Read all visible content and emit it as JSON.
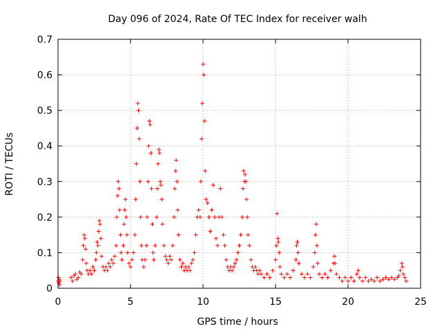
{
  "chart_data": {
    "type": "scatter",
    "title": "Day 096 of 2024, Rate Of TEC Index for receiver walh",
    "xlabel": "GPS time / hours",
    "ylabel": "ROTI / TECUs",
    "xlim": [
      0,
      25
    ],
    "ylim": [
      0,
      0.7
    ],
    "xticks": [
      "0",
      "5",
      "10",
      "15",
      "20",
      "25"
    ],
    "yticks": [
      "0",
      "0.1",
      "0.2",
      "0.3",
      "0.4",
      "0.5",
      "0.6",
      "0.7"
    ],
    "grid": true,
    "legend": "none",
    "marker": "plus",
    "color": "#ff0000",
    "points": [
      [
        0.0,
        0.02
      ],
      [
        0.02,
        0.03
      ],
      [
        0.05,
        0.015
      ],
      [
        0.08,
        0.025
      ],
      [
        0.1,
        0.01
      ],
      [
        0.12,
        0.02
      ],
      [
        0.9,
        0.03
      ],
      [
        1.0,
        0.02
      ],
      [
        1.1,
        0.035
      ],
      [
        1.2,
        0.04
      ],
      [
        1.3,
        0.025
      ],
      [
        1.4,
        0.03
      ],
      [
        1.5,
        0.045
      ],
      [
        1.6,
        0.04
      ],
      [
        1.7,
        0.08
      ],
      [
        1.75,
        0.12
      ],
      [
        1.8,
        0.15
      ],
      [
        1.85,
        0.14
      ],
      [
        1.9,
        0.11
      ],
      [
        1.95,
        0.07
      ],
      [
        2.0,
        0.05
      ],
      [
        2.1,
        0.04
      ],
      [
        2.2,
        0.05
      ],
      [
        2.3,
        0.04
      ],
      [
        2.4,
        0.06
      ],
      [
        2.5,
        0.05
      ],
      [
        2.6,
        0.08
      ],
      [
        2.65,
        0.1
      ],
      [
        2.7,
        0.13
      ],
      [
        2.75,
        0.12
      ],
      [
        2.8,
        0.16
      ],
      [
        2.85,
        0.19
      ],
      [
        2.9,
        0.18
      ],
      [
        2.95,
        0.14
      ],
      [
        3.0,
        0.09
      ],
      [
        3.1,
        0.06
      ],
      [
        3.2,
        0.05
      ],
      [
        3.3,
        0.06
      ],
      [
        3.4,
        0.05
      ],
      [
        3.5,
        0.07
      ],
      [
        3.6,
        0.06
      ],
      [
        3.7,
        0.08
      ],
      [
        3.8,
        0.07
      ],
      [
        3.9,
        0.09
      ],
      [
        4.0,
        0.12
      ],
      [
        4.05,
        0.2
      ],
      [
        4.1,
        0.26
      ],
      [
        4.15,
        0.3
      ],
      [
        4.2,
        0.28
      ],
      [
        4.25,
        0.22
      ],
      [
        4.3,
        0.15
      ],
      [
        4.35,
        0.1
      ],
      [
        4.4,
        0.08
      ],
      [
        4.5,
        0.12
      ],
      [
        4.55,
        0.18
      ],
      [
        4.6,
        0.22
      ],
      [
        4.65,
        0.25
      ],
      [
        4.7,
        0.2
      ],
      [
        4.75,
        0.15
      ],
      [
        4.8,
        0.1
      ],
      [
        4.9,
        0.07
      ],
      [
        5.0,
        0.06
      ],
      [
        5.1,
        0.08
      ],
      [
        5.2,
        0.1
      ],
      [
        5.3,
        0.15
      ],
      [
        5.35,
        0.25
      ],
      [
        5.4,
        0.35
      ],
      [
        5.45,
        0.45
      ],
      [
        5.5,
        0.52
      ],
      [
        5.55,
        0.5
      ],
      [
        5.6,
        0.42
      ],
      [
        5.65,
        0.3
      ],
      [
        5.7,
        0.2
      ],
      [
        5.75,
        0.12
      ],
      [
        5.8,
        0.08
      ],
      [
        5.9,
        0.06
      ],
      [
        6.0,
        0.08
      ],
      [
        6.1,
        0.12
      ],
      [
        6.15,
        0.2
      ],
      [
        6.2,
        0.3
      ],
      [
        6.25,
        0.4
      ],
      [
        6.3,
        0.47
      ],
      [
        6.35,
        0.46
      ],
      [
        6.4,
        0.38
      ],
      [
        6.45,
        0.28
      ],
      [
        6.5,
        0.18
      ],
      [
        6.55,
        0.1
      ],
      [
        6.6,
        0.08
      ],
      [
        6.7,
        0.12
      ],
      [
        6.8,
        0.2
      ],
      [
        6.85,
        0.28
      ],
      [
        6.9,
        0.35
      ],
      [
        6.95,
        0.39
      ],
      [
        7.0,
        0.38
      ],
      [
        7.05,
        0.3
      ],
      [
        7.1,
        0.29
      ],
      [
        7.15,
        0.25
      ],
      [
        7.2,
        0.18
      ],
      [
        7.3,
        0.12
      ],
      [
        7.4,
        0.09
      ],
      [
        7.5,
        0.08
      ],
      [
        7.6,
        0.07
      ],
      [
        7.7,
        0.09
      ],
      [
        7.8,
        0.08
      ],
      [
        7.9,
        0.12
      ],
      [
        8.0,
        0.2
      ],
      [
        8.05,
        0.28
      ],
      [
        8.1,
        0.33
      ],
      [
        8.15,
        0.36
      ],
      [
        8.2,
        0.3
      ],
      [
        8.25,
        0.22
      ],
      [
        8.3,
        0.15
      ],
      [
        8.4,
        0.08
      ],
      [
        8.5,
        0.06
      ],
      [
        8.6,
        0.07
      ],
      [
        8.7,
        0.05
      ],
      [
        8.8,
        0.06
      ],
      [
        8.9,
        0.05
      ],
      [
        9.0,
        0.06
      ],
      [
        9.1,
        0.05
      ],
      [
        9.2,
        0.07
      ],
      [
        9.3,
        0.08
      ],
      [
        9.4,
        0.1
      ],
      [
        9.5,
        0.15
      ],
      [
        9.6,
        0.2
      ],
      [
        9.7,
        0.22
      ],
      [
        9.8,
        0.2
      ],
      [
        9.85,
        0.3
      ],
      [
        9.9,
        0.42
      ],
      [
        9.95,
        0.52
      ],
      [
        10.0,
        0.63
      ],
      [
        10.05,
        0.6
      ],
      [
        10.1,
        0.47
      ],
      [
        10.15,
        0.33
      ],
      [
        10.2,
        0.25
      ],
      [
        10.3,
        0.24
      ],
      [
        10.4,
        0.2
      ],
      [
        10.5,
        0.16
      ],
      [
        10.6,
        0.22
      ],
      [
        10.7,
        0.29
      ],
      [
        10.8,
        0.2
      ],
      [
        10.9,
        0.14
      ],
      [
        11.0,
        0.12
      ],
      [
        11.1,
        0.2
      ],
      [
        11.2,
        0.28
      ],
      [
        11.3,
        0.2
      ],
      [
        11.4,
        0.15
      ],
      [
        11.5,
        0.12
      ],
      [
        11.6,
        0.08
      ],
      [
        11.7,
        0.06
      ],
      [
        11.8,
        0.05
      ],
      [
        11.9,
        0.06
      ],
      [
        12.0,
        0.05
      ],
      [
        12.1,
        0.06
      ],
      [
        12.2,
        0.07
      ],
      [
        12.3,
        0.08
      ],
      [
        12.4,
        0.1
      ],
      [
        12.5,
        0.12
      ],
      [
        12.6,
        0.15
      ],
      [
        12.7,
        0.2
      ],
      [
        12.75,
        0.28
      ],
      [
        12.8,
        0.33
      ],
      [
        12.85,
        0.3
      ],
      [
        12.9,
        0.32
      ],
      [
        12.95,
        0.3
      ],
      [
        13.0,
        0.25
      ],
      [
        13.05,
        0.2
      ],
      [
        13.1,
        0.15
      ],
      [
        13.2,
        0.12
      ],
      [
        13.3,
        0.08
      ],
      [
        13.4,
        0.06
      ],
      [
        13.5,
        0.05
      ],
      [
        13.6,
        0.06
      ],
      [
        13.7,
        0.05
      ],
      [
        13.8,
        0.04
      ],
      [
        13.9,
        0.05
      ],
      [
        14.0,
        0.04
      ],
      [
        14.2,
        0.03
      ],
      [
        14.4,
        0.04
      ],
      [
        14.6,
        0.03
      ],
      [
        14.8,
        0.05
      ],
      [
        15.0,
        0.08
      ],
      [
        15.05,
        0.12
      ],
      [
        15.1,
        0.21
      ],
      [
        15.15,
        0.14
      ],
      [
        15.2,
        0.13
      ],
      [
        15.25,
        0.1
      ],
      [
        15.3,
        0.06
      ],
      [
        15.4,
        0.04
      ],
      [
        15.6,
        0.03
      ],
      [
        15.8,
        0.04
      ],
      [
        16.0,
        0.03
      ],
      [
        16.2,
        0.05
      ],
      [
        16.4,
        0.08
      ],
      [
        16.45,
        0.12
      ],
      [
        16.5,
        0.13
      ],
      [
        16.55,
        0.1
      ],
      [
        16.6,
        0.07
      ],
      [
        16.8,
        0.04
      ],
      [
        17.0,
        0.03
      ],
      [
        17.2,
        0.04
      ],
      [
        17.4,
        0.03
      ],
      [
        17.6,
        0.06
      ],
      [
        17.7,
        0.1
      ],
      [
        17.75,
        0.15
      ],
      [
        17.8,
        0.18
      ],
      [
        17.85,
        0.12
      ],
      [
        17.9,
        0.07
      ],
      [
        18.0,
        0.04
      ],
      [
        18.2,
        0.03
      ],
      [
        18.4,
        0.04
      ],
      [
        18.6,
        0.03
      ],
      [
        18.8,
        0.05
      ],
      [
        19.0,
        0.07
      ],
      [
        19.05,
        0.09
      ],
      [
        19.1,
        0.07
      ],
      [
        19.2,
        0.04
      ],
      [
        19.4,
        0.03
      ],
      [
        19.6,
        0.02
      ],
      [
        19.8,
        0.03
      ],
      [
        20.0,
        0.02
      ],
      [
        20.2,
        0.03
      ],
      [
        20.4,
        0.02
      ],
      [
        20.6,
        0.04
      ],
      [
        20.7,
        0.05
      ],
      [
        20.8,
        0.03
      ],
      [
        21.0,
        0.02
      ],
      [
        21.2,
        0.03
      ],
      [
        21.4,
        0.02
      ],
      [
        21.6,
        0.025
      ],
      [
        21.8,
        0.02
      ],
      [
        22.0,
        0.03
      ],
      [
        22.2,
        0.02
      ],
      [
        22.4,
        0.025
      ],
      [
        22.6,
        0.03
      ],
      [
        22.8,
        0.025
      ],
      [
        23.0,
        0.03
      ],
      [
        23.2,
        0.025
      ],
      [
        23.4,
        0.03
      ],
      [
        23.5,
        0.035
      ],
      [
        23.6,
        0.05
      ],
      [
        23.7,
        0.07
      ],
      [
        23.75,
        0.06
      ],
      [
        23.8,
        0.04
      ],
      [
        23.9,
        0.03
      ],
      [
        24.0,
        0.02
      ]
    ]
  }
}
